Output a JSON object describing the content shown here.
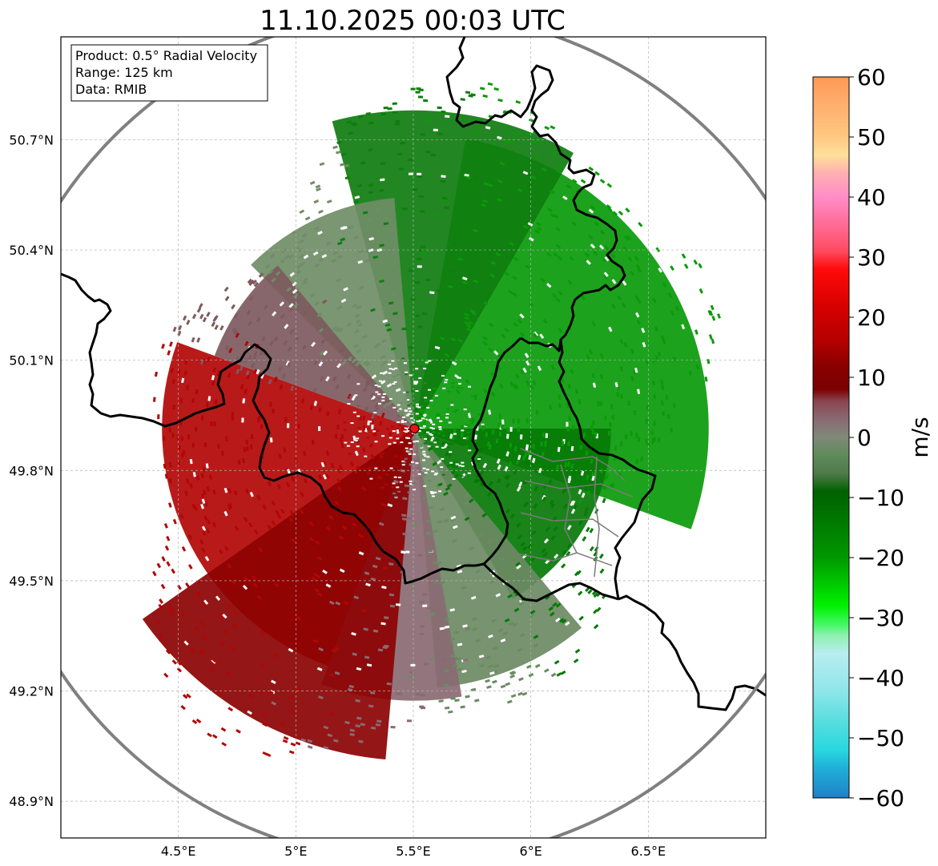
{
  "title": "11.10.2025 00:03 UTC",
  "info_box": {
    "product": "Product: 0.5° Radial Velocity",
    "range": "Range: 125 km",
    "data": "Data: RMIB"
  },
  "map": {
    "lon_range": [
      4.0,
      7.0
    ],
    "lat_range": [
      48.8,
      50.98
    ],
    "radar_site": {
      "lon": 5.505,
      "lat": 49.914
    },
    "range_ring_km": 125,
    "lon_ticks": [
      {
        "value": 4.5,
        "label": "4.5°E"
      },
      {
        "value": 5.0,
        "label": "5°E"
      },
      {
        "value": 5.5,
        "label": "5.5°E"
      },
      {
        "value": 6.0,
        "label": "6°E"
      },
      {
        "value": 6.5,
        "label": "6.5°E"
      }
    ],
    "lat_ticks": [
      {
        "value": 50.7,
        "label": "50.7°N"
      },
      {
        "value": 50.4,
        "label": "50.4°N"
      },
      {
        "value": 50.1,
        "label": "50.1°N"
      },
      {
        "value": 49.8,
        "label": "49.8°N"
      },
      {
        "value": 49.5,
        "label": "49.5°N"
      },
      {
        "value": 49.2,
        "label": "49.2°N"
      },
      {
        "value": 48.9,
        "label": "48.9°N"
      }
    ],
    "grid": true,
    "colors": {
      "background": "#ffffff",
      "border": "#000000",
      "range_ring": "#808080",
      "gridline": "#b0b0b0",
      "radar_marker": "#e81414",
      "inner_boundaries": "#7a7a7a"
    },
    "velocity_field": {
      "max_range_km": 100,
      "inbound_direction_deg": 66,
      "sectors": [
        {
          "name": "inbound-strong",
          "from_deg": 10,
          "to_deg": 110,
          "color": "#0a9a0a"
        },
        {
          "name": "inbound-dark",
          "from_deg": 90,
          "to_deg": 150,
          "color": "#067a06"
        },
        {
          "name": "inbound-north",
          "from_deg": -15,
          "to_deg": 30,
          "color": "#0f7d0f"
        },
        {
          "name": "near-zero-south-east",
          "from_deg": 140,
          "to_deg": 175,
          "color": "#6b8a63"
        },
        {
          "name": "near-zero-north",
          "from_deg": -45,
          "to_deg": -5,
          "color": "#6f8d66"
        },
        {
          "name": "outbound-pink",
          "from_deg": 170,
          "to_deg": 200,
          "color": "#8a6a72"
        },
        {
          "name": "outbound-red",
          "from_deg": 200,
          "to_deg": 290,
          "color": "#b20606"
        },
        {
          "name": "outbound-dark",
          "from_deg": 185,
          "to_deg": 235,
          "color": "#8c0202"
        },
        {
          "name": "outbound-northwest",
          "from_deg": 290,
          "to_deg": 320,
          "color": "#7d5a5e"
        }
      ]
    }
  },
  "colorbar": {
    "label": "m/s",
    "vmin": -60,
    "vmax": 60,
    "ticks": [
      {
        "value": 60,
        "label": "60"
      },
      {
        "value": 50,
        "label": "50"
      },
      {
        "value": 40,
        "label": "40"
      },
      {
        "value": 30,
        "label": "30"
      },
      {
        "value": 20,
        "label": "20"
      },
      {
        "value": 10,
        "label": "10"
      },
      {
        "value": 0,
        "label": "0"
      },
      {
        "value": -10,
        "label": "−10"
      },
      {
        "value": -20,
        "label": "−20"
      },
      {
        "value": -30,
        "label": "−30"
      },
      {
        "value": -40,
        "label": "−40"
      },
      {
        "value": -50,
        "label": "−50"
      },
      {
        "value": -60,
        "label": "−60"
      }
    ],
    "color_stops": [
      {
        "value": 60,
        "color": "#ff9955"
      },
      {
        "value": 55,
        "color": "#ffb070"
      },
      {
        "value": 50,
        "color": "#ffc880"
      },
      {
        "value": 47,
        "color": "#ffe09a"
      },
      {
        "value": 44,
        "color": "#ffb0b0"
      },
      {
        "value": 40,
        "color": "#ff8cc8"
      },
      {
        "value": 35,
        "color": "#ff6890"
      },
      {
        "value": 31,
        "color": "#ff4a60"
      },
      {
        "value": 28,
        "color": "#ff0a0a"
      },
      {
        "value": 22,
        "color": "#d80000"
      },
      {
        "value": 16,
        "color": "#b40000"
      },
      {
        "value": 12,
        "color": "#8a0000"
      },
      {
        "value": 8,
        "color": "#7a0000"
      },
      {
        "value": 6,
        "color": "#8a4650"
      },
      {
        "value": 3,
        "color": "#8a6a72"
      },
      {
        "value": 0,
        "color": "#7f8a78"
      },
      {
        "value": -3,
        "color": "#5f8a5a"
      },
      {
        "value": -6,
        "color": "#4f7a4a"
      },
      {
        "value": -9,
        "color": "#006200"
      },
      {
        "value": -15,
        "color": "#007e00"
      },
      {
        "value": -20,
        "color": "#009800"
      },
      {
        "value": -25,
        "color": "#00d000"
      },
      {
        "value": -28,
        "color": "#00f000"
      },
      {
        "value": -31,
        "color": "#40f860"
      },
      {
        "value": -33,
        "color": "#8ef0b0"
      },
      {
        "value": -36,
        "color": "#b8eef0"
      },
      {
        "value": -42,
        "color": "#90e6ea"
      },
      {
        "value": -48,
        "color": "#50dcde"
      },
      {
        "value": -52,
        "color": "#28d8e0"
      },
      {
        "value": -55,
        "color": "#20b0d8"
      },
      {
        "value": -60,
        "color": "#2080c8"
      }
    ]
  }
}
